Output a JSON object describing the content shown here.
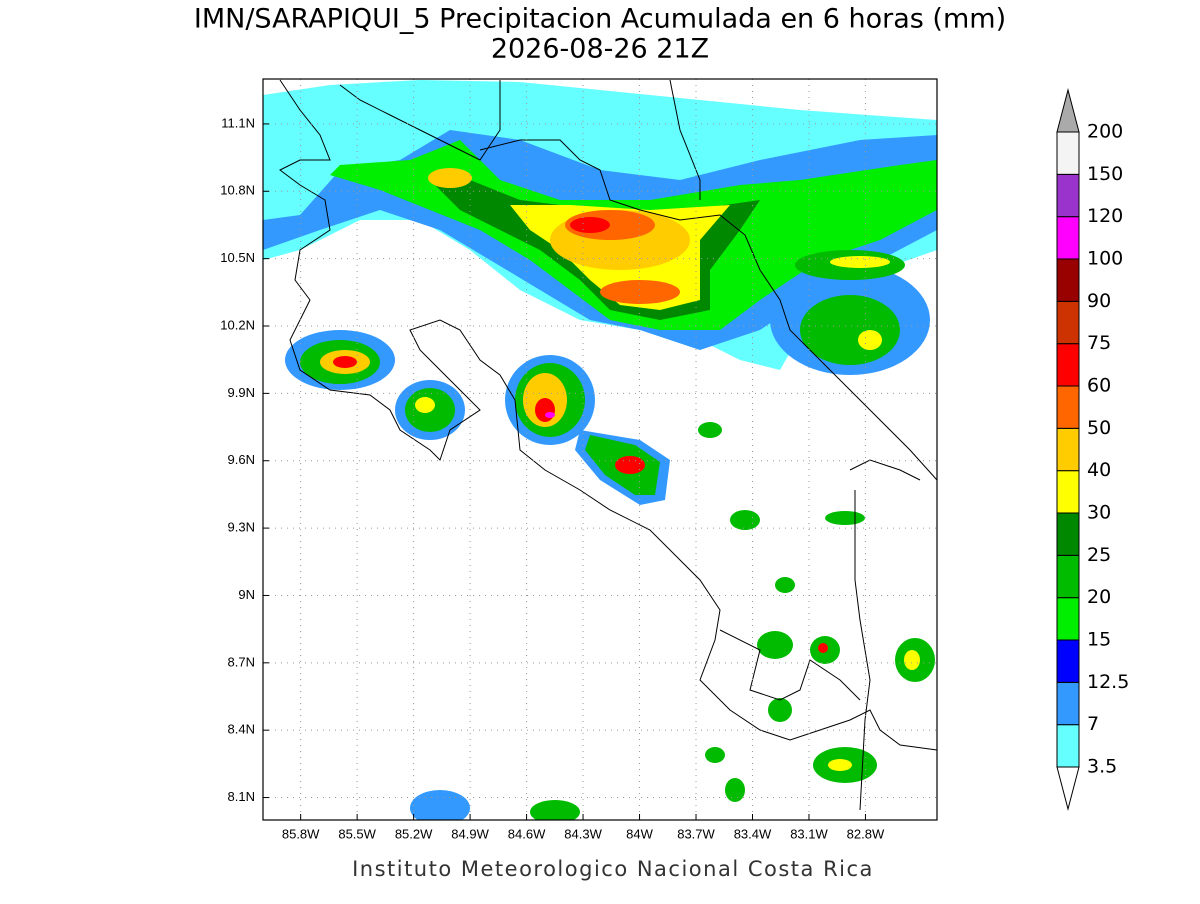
{
  "header": {
    "title": "IMN/SARAPIQUI_5 Precipitacion Acumulada en 6 horas (mm)",
    "subtitle": "2026-08-26 21Z"
  },
  "map": {
    "xlim": [
      -86.0,
      -82.42
    ],
    "ylim": [
      8.0,
      11.3
    ],
    "xticks": [
      {
        "value": -85.8,
        "label": "85.8W"
      },
      {
        "value": -85.5,
        "label": "85.5W"
      },
      {
        "value": -85.2,
        "label": "85.2W"
      },
      {
        "value": -84.9,
        "label": "84.9W"
      },
      {
        "value": -84.6,
        "label": "84.6W"
      },
      {
        "value": -84.3,
        "label": "84.3W"
      },
      {
        "value": -84,
        "label": "84W"
      },
      {
        "value": -83.7,
        "label": "83.7W"
      },
      {
        "value": -83.4,
        "label": "83.4W"
      },
      {
        "value": -83.1,
        "label": "83.1W"
      },
      {
        "value": -82.8,
        "label": "82.8W"
      }
    ],
    "yticks": [
      {
        "value": 8.1,
        "label": "8.1N"
      },
      {
        "value": 8.4,
        "label": "8.4N"
      },
      {
        "value": 8.7,
        "label": "8.7N"
      },
      {
        "value": 9,
        "label": "9N"
      },
      {
        "value": 9.3,
        "label": "9.3N"
      },
      {
        "value": 9.6,
        "label": "9.6N"
      },
      {
        "value": 9.9,
        "label": "9.9N"
      },
      {
        "value": 10.2,
        "label": "10.2N"
      },
      {
        "value": 10.5,
        "label": "10.5N"
      },
      {
        "value": 10.8,
        "label": "10.8N"
      },
      {
        "value": 11.1,
        "label": "11.1N"
      }
    ],
    "grid": true
  },
  "colorbar": {
    "levels": [
      3.5,
      7,
      12.5,
      15,
      20,
      25,
      30,
      40,
      50,
      60,
      75,
      90,
      100,
      120,
      150,
      200
    ],
    "colors": [
      "#66ffff",
      "#3399ff",
      "#0000ff",
      "#00ee00",
      "#00bb00",
      "#008800",
      "#ffff00",
      "#ffcc00",
      "#ff6600",
      "#ff0000",
      "#cc3300",
      "#990000",
      "#ff00ff",
      "#9933cc",
      "#f4f4f4"
    ],
    "below_color": "#ffffff",
    "above_color": "#aaaaaa"
  },
  "footer": {
    "credit": "Instituto Meteorologico Nacional Costa Rica"
  }
}
